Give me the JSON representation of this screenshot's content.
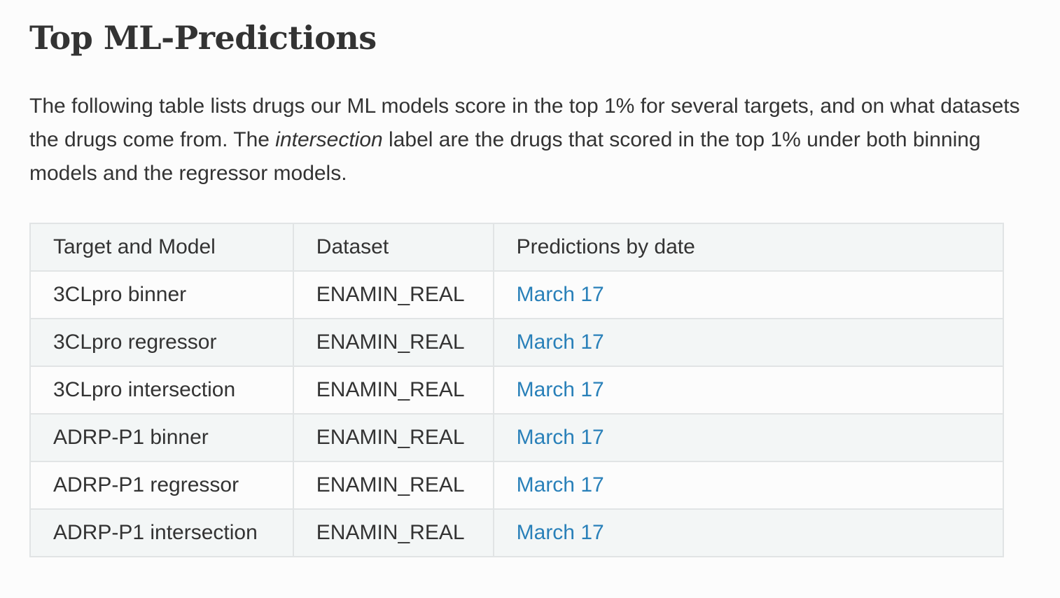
{
  "page": {
    "title": "Top ML-Predictions",
    "intro": {
      "part1": "The following table lists drugs our ML models score in the top 1% for several targets, and on what datasets the drugs come from. The ",
      "emphasis": "intersection",
      "part2": " label are the drugs that scored in the top 1% under both binning models and the regressor models."
    }
  },
  "table": {
    "headers": [
      "Target and Model",
      "Dataset",
      "Predictions by date"
    ],
    "rows": [
      {
        "target_model": "3CLpro binner",
        "dataset": "ENAMIN_REAL",
        "date": "March 17"
      },
      {
        "target_model": "3CLpro regressor",
        "dataset": "ENAMIN_REAL",
        "date": "March 17"
      },
      {
        "target_model": "3CLpro intersection",
        "dataset": "ENAMIN_REAL",
        "date": "March 17"
      },
      {
        "target_model": "ADRP-P1 binner",
        "dataset": "ENAMIN_REAL",
        "date": "March 17"
      },
      {
        "target_model": "ADRP-P1 regressor",
        "dataset": "ENAMIN_REAL",
        "date": "March 17"
      },
      {
        "target_model": "ADRP-P1 intersection",
        "dataset": "ENAMIN_REAL",
        "date": "March 17"
      }
    ]
  },
  "colors": {
    "text": "#333333",
    "link": "#2980b9",
    "border": "#e1e4e5",
    "stripe": "#f3f6f6",
    "background": "#fcfcfc"
  }
}
